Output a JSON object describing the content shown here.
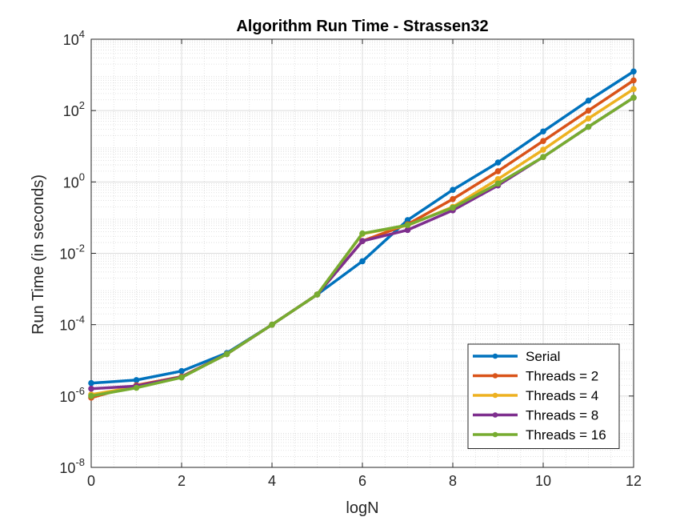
{
  "chart_data": {
    "type": "line",
    "title": "Algorithm Run Time - Strassen32",
    "xlabel": "logN",
    "ylabel": "Run Time (in seconds)",
    "xlim": [
      0,
      12
    ],
    "ylim": [
      1e-08,
      10000
    ],
    "yscale": "log",
    "grid": "on (major and minor)",
    "legend_position": "bottom-right",
    "x": [
      0,
      1,
      2,
      3,
      4,
      5,
      6,
      7,
      8,
      9,
      10,
      11,
      12
    ],
    "x_ticks": [
      "0",
      "2",
      "4",
      "6",
      "8",
      "10",
      "12"
    ],
    "y_tick_exponents": [
      "-8",
      "-6",
      "-4",
      "-2",
      "0",
      "2",
      "4"
    ],
    "series": [
      {
        "name": "Serial",
        "color": "#0072BD",
        "values": [
          2.3e-06,
          2.8e-06,
          5e-06,
          1.6e-05,
          0.0001,
          0.0007,
          0.006,
          0.085,
          0.6,
          3.5,
          26,
          190,
          1250
        ]
      },
      {
        "name": "Threads = 2",
        "color": "#D95319",
        "values": [
          9e-07,
          2e-06,
          3.5e-06,
          1.5e-05,
          0.0001,
          0.0007,
          0.022,
          0.065,
          0.33,
          2,
          14,
          100,
          700
        ]
      },
      {
        "name": "Threads = 4",
        "color": "#EDB120",
        "values": [
          1.1e-06,
          1.8e-06,
          3.4e-06,
          1.5e-05,
          0.0001,
          0.0007,
          0.035,
          0.06,
          0.2,
          1.2,
          8,
          60,
          400
        ]
      },
      {
        "name": "Threads = 8",
        "color": "#7E2F8E",
        "values": [
          1.6e-06,
          1.9e-06,
          3.4e-06,
          1.5e-05,
          0.0001,
          0.0007,
          0.022,
          0.045,
          0.16,
          0.8,
          5,
          35,
          230
        ]
      },
      {
        "name": "Threads = 16",
        "color": "#77AC30",
        "values": [
          1e-06,
          1.7e-06,
          3.3e-06,
          1.5e-05,
          0.0001,
          0.0007,
          0.036,
          0.062,
          0.19,
          0.9,
          5,
          35,
          230
        ]
      }
    ]
  }
}
